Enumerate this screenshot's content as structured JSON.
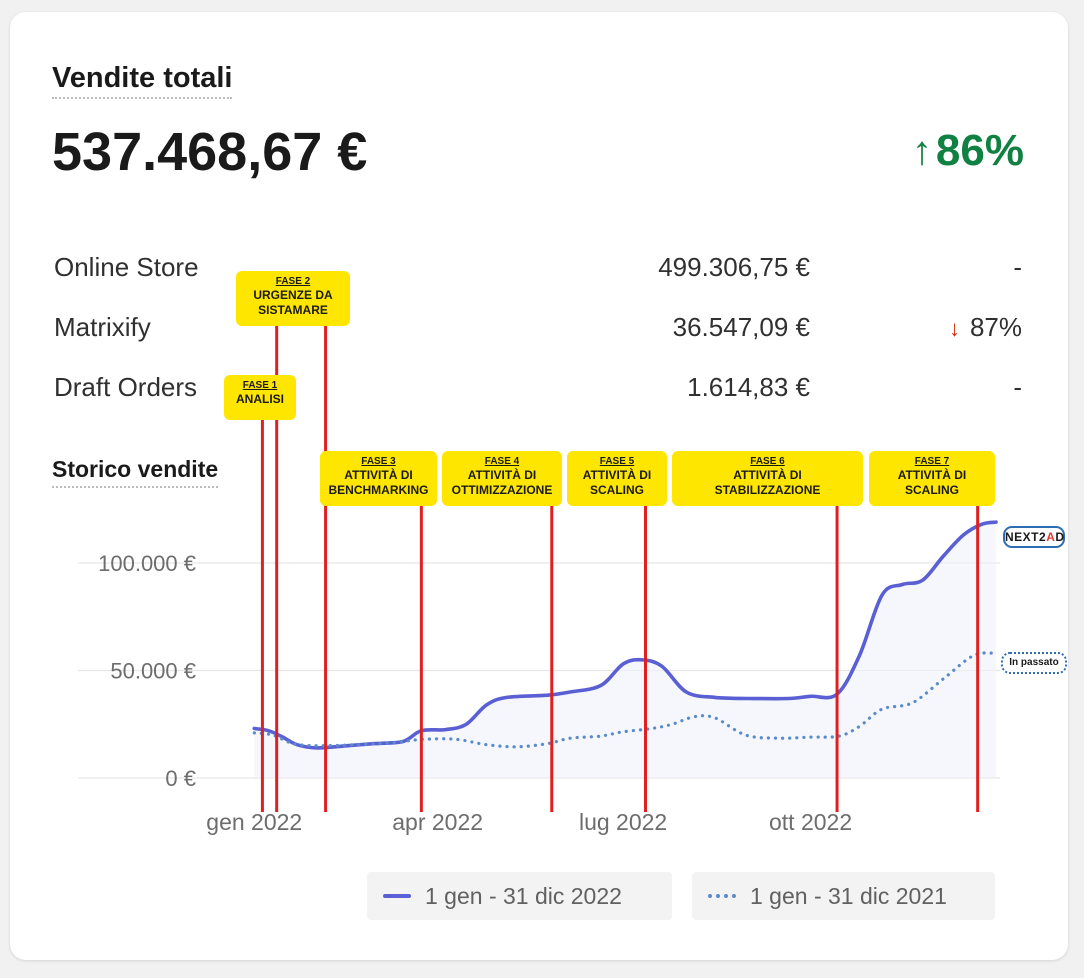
{
  "card": {
    "title": "Vendite totali",
    "total": "537.468,67 €",
    "delta_arrow": "↑",
    "delta_value": "86%",
    "delta_color": "#108043"
  },
  "breakdown": [
    {
      "name": "Online Store",
      "amount": "499.306,75 €",
      "change": "-",
      "direction": ""
    },
    {
      "name": "Matrixify",
      "amount": "36.547,09 €",
      "change": "87%",
      "direction": "↓"
    },
    {
      "name": "Draft Orders",
      "amount": "1.614,83 €",
      "change": "-",
      "direction": ""
    }
  ],
  "history": {
    "title": "Storico vendite"
  },
  "chart_data": {
    "type": "line",
    "title": "Storico vendite",
    "x_tick_labels": [
      "gen 2022",
      "apr 2022",
      "lug 2022",
      "ott 2022"
    ],
    "y_tick_labels": [
      "0 €",
      "50.000 €",
      "100.000 €"
    ],
    "y_ticks": [
      0,
      50000,
      100000
    ],
    "ylim": [
      0,
      120000
    ],
    "xlim": [
      "2021-12-25",
      "2022-12-31"
    ],
    "grid": true,
    "legend_placement": "bottom",
    "series": [
      {
        "name": "1 gen - 31 dic 2022",
        "color": "#5a5fd4",
        "style": "solid",
        "points": [
          [
            "2022-01-01",
            23000
          ],
          [
            "2022-01-08",
            22000
          ],
          [
            "2022-01-15",
            19000
          ],
          [
            "2022-01-22",
            15500
          ],
          [
            "2022-02-01",
            14000
          ],
          [
            "2022-02-15",
            15000
          ],
          [
            "2022-03-01",
            16000
          ],
          [
            "2022-03-15",
            17000
          ],
          [
            "2022-03-24",
            22000
          ],
          [
            "2022-04-05",
            22500
          ],
          [
            "2022-04-15",
            25000
          ],
          [
            "2022-04-25",
            34000
          ],
          [
            "2022-05-05",
            37500
          ],
          [
            "2022-05-25",
            38500
          ],
          [
            "2022-06-05",
            40000
          ],
          [
            "2022-06-20",
            43000
          ],
          [
            "2022-07-01",
            53000
          ],
          [
            "2022-07-10",
            55000
          ],
          [
            "2022-07-20",
            52000
          ],
          [
            "2022-08-01",
            40000
          ],
          [
            "2022-08-15",
            37500
          ],
          [
            "2022-09-01",
            37000
          ],
          [
            "2022-09-20",
            37000
          ],
          [
            "2022-10-01",
            38000
          ],
          [
            "2022-10-14",
            39000
          ],
          [
            "2022-10-25",
            57000
          ],
          [
            "2022-11-05",
            85000
          ],
          [
            "2022-11-15",
            90000
          ],
          [
            "2022-11-25",
            92000
          ],
          [
            "2022-12-05",
            103000
          ],
          [
            "2022-12-15",
            113000
          ],
          [
            "2022-12-24",
            118000
          ],
          [
            "2022-12-31",
            119000
          ]
        ]
      },
      {
        "name": "1 gen - 31 dic 2021",
        "color": "#5b8cc9",
        "style": "dotted",
        "points": [
          [
            "2022-01-01",
            21000
          ],
          [
            "2022-01-10",
            20000
          ],
          [
            "2022-01-20",
            16000
          ],
          [
            "2022-02-01",
            15000
          ],
          [
            "2022-02-20",
            15500
          ],
          [
            "2022-03-10",
            16500
          ],
          [
            "2022-03-25",
            18000
          ],
          [
            "2022-04-10",
            18000
          ],
          [
            "2022-04-25",
            15500
          ],
          [
            "2022-05-10",
            14500
          ],
          [
            "2022-05-25",
            16000
          ],
          [
            "2022-06-05",
            18500
          ],
          [
            "2022-06-20",
            19500
          ],
          [
            "2022-07-01",
            21500
          ],
          [
            "2022-07-15",
            23000
          ],
          [
            "2022-07-25",
            25000
          ],
          [
            "2022-08-05",
            28500
          ],
          [
            "2022-08-15",
            28000
          ],
          [
            "2022-08-30",
            20000
          ],
          [
            "2022-09-15",
            18500
          ],
          [
            "2022-10-01",
            19000
          ],
          [
            "2022-10-15",
            19500
          ],
          [
            "2022-10-25",
            24000
          ],
          [
            "2022-11-05",
            32000
          ],
          [
            "2022-11-20",
            35000
          ],
          [
            "2022-12-05",
            46000
          ],
          [
            "2022-12-20",
            57000
          ],
          [
            "2022-12-31",
            58000
          ]
        ]
      }
    ]
  },
  "phases": [
    {
      "fase": "FASE 1",
      "label": "ANALISI",
      "lines": [
        "ANALISI"
      ]
    },
    {
      "fase": "FASE 2",
      "label": "URGENZE DA SISTAMARE",
      "lines": [
        "URGENZE DA",
        "SISTAMARE"
      ]
    },
    {
      "fase": "FASE 3",
      "label": "ATTIVITÀ DI BENCHMARKING",
      "lines": [
        "ATTIVITÀ DI",
        "BENCHMARKING"
      ]
    },
    {
      "fase": "FASE 4",
      "label": "ATTIVITÀ DI OTTIMIZZAZIONE",
      "lines": [
        "ATTIVITÀ DI",
        "OTTIMIZZAZIONE"
      ]
    },
    {
      "fase": "FASE 5",
      "label": "ATTIVITÀ DI SCALING",
      "lines": [
        "ATTIVITÀ DI",
        "SCALING"
      ]
    },
    {
      "fase": "FASE 6",
      "label": "ATTIVITÀ DI STABILIZZAZIONE",
      "lines": [
        "ATTIVITÀ DI",
        "STABILIZZAZIONE"
      ]
    },
    {
      "fase": "FASE 7",
      "label": "ATTIVITÀ DI SCALING",
      "lines": [
        "ATTIVITÀ DI",
        "SCALING"
      ]
    }
  ],
  "phase_dates": [
    "2022-01-05",
    "2022-01-12",
    "2022-02-05",
    "2022-03-24",
    "2022-05-27",
    "2022-07-12",
    "2022-10-14",
    "2022-12-22"
  ],
  "phase_color": "#ffe600",
  "marker_color": "#e02020",
  "labels": {
    "brand": "NEXT2AD",
    "brand_parts": [
      "NEXT2",
      "A",
      "D"
    ],
    "past": "In passato"
  },
  "legend": {
    "current": "1 gen - 31 dic 2022",
    "previous": "1 gen - 31 dic 2021"
  }
}
